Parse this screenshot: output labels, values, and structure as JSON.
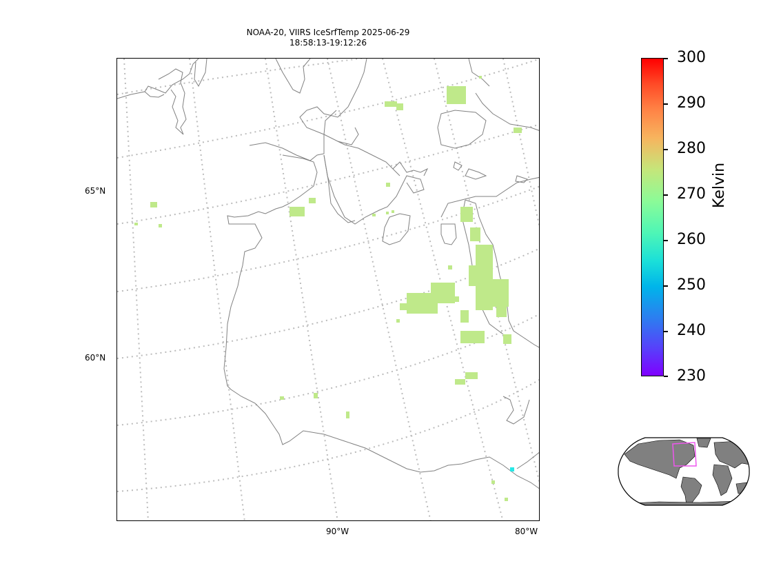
{
  "title": {
    "line1": "NOAA-20, VIIRS IceSrfTemp 2025-06-29",
    "line2": "18:58:13-19:12:26"
  },
  "map": {
    "lat_labels": [
      "65°N",
      "60°N"
    ],
    "lon_labels": [
      "90°W",
      "80°W"
    ],
    "coastline_color": "#808080",
    "gridline_color": "#bbbbbb",
    "pixel_color": "#bfe98a",
    "cold_pixel_color": "#27e8e6"
  },
  "colorbar": {
    "label": "Kelvin",
    "ticks": [
      "300",
      "290",
      "280",
      "270",
      "260",
      "250",
      "240",
      "230"
    ],
    "min": 230,
    "max": 300,
    "colormap": "rainbow"
  },
  "inset": {
    "land_color": "#808080",
    "region_color": "#ee55ee"
  }
}
